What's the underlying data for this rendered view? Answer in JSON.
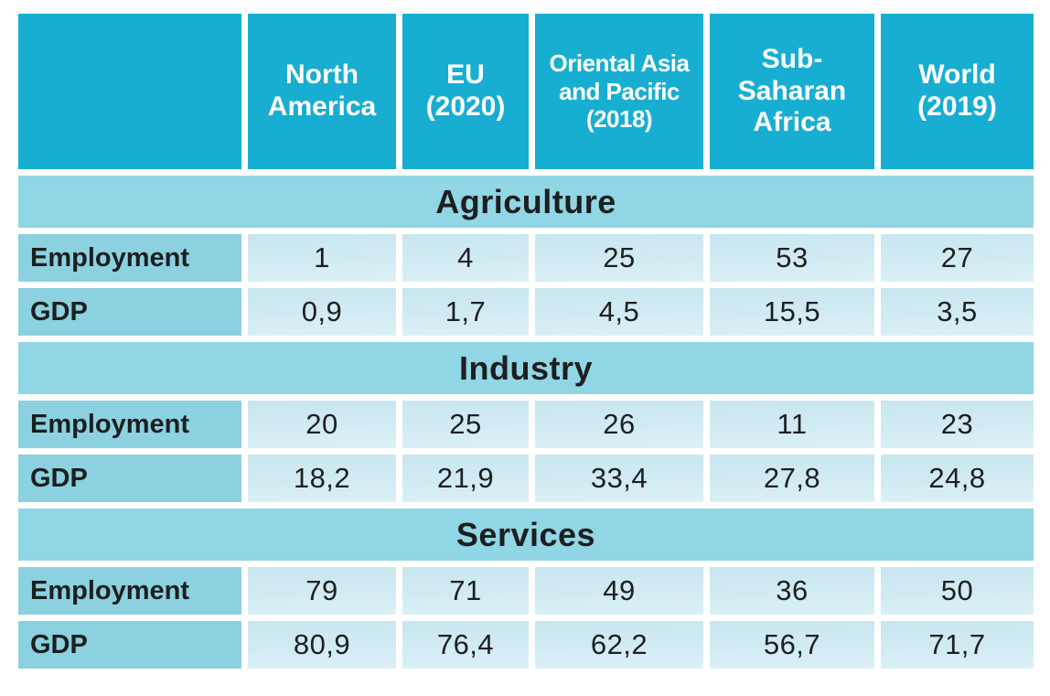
{
  "table": {
    "column_headers": [
      "",
      "North\nAmerica",
      "EU\n(2020)",
      "Oriental Asia\nand Pacific\n(2018)",
      "Sub-Saharan\nAfrica",
      "World\n(2019)"
    ],
    "sections": [
      {
        "title": "Agriculture",
        "rows": [
          {
            "label": "Employment",
            "values": [
              "1",
              "4",
              "25",
              "53",
              "27"
            ]
          },
          {
            "label": "GDP",
            "values": [
              "0,9",
              "1,7",
              "4,5",
              "15,5",
              "3,5"
            ]
          }
        ]
      },
      {
        "title": "Industry",
        "rows": [
          {
            "label": "Employment",
            "values": [
              "20",
              "25",
              "26",
              "11",
              "23"
            ]
          },
          {
            "label": "GDP",
            "values": [
              "18,2",
              "21,9",
              "33,4",
              "27,8",
              "24,8"
            ]
          }
        ]
      },
      {
        "title": "Services",
        "rows": [
          {
            "label": "Employment",
            "values": [
              "79",
              "71",
              "49",
              "36",
              "50"
            ]
          },
          {
            "label": "GDP",
            "values": [
              "80,9",
              "76,4",
              "62,2",
              "56,7",
              "71,7"
            ]
          }
        ]
      }
    ]
  },
  "chart_data": {
    "type": "table",
    "columns": [
      "North America",
      "EU (2020)",
      "Oriental Asia and Pacific (2018)",
      "Sub-Saharan Africa",
      "World (2019)"
    ],
    "sections": [
      {
        "title": "Agriculture",
        "series": [
          {
            "name": "Employment",
            "values": [
              1,
              4,
              25,
              53,
              27
            ]
          },
          {
            "name": "GDP",
            "values": [
              0.9,
              1.7,
              4.5,
              15.5,
              3.5
            ]
          }
        ]
      },
      {
        "title": "Industry",
        "series": [
          {
            "name": "Employment",
            "values": [
              20,
              25,
              26,
              11,
              23
            ]
          },
          {
            "name": "GDP",
            "values": [
              18.2,
              21.9,
              33.4,
              27.8,
              24.8
            ]
          }
        ]
      },
      {
        "title": "Services",
        "series": [
          {
            "name": "Employment",
            "values": [
              79,
              71,
              49,
              36,
              50
            ]
          },
          {
            "name": "GDP",
            "values": [
              80.9,
              76.4,
              62.2,
              56.7,
              71.7
            ]
          }
        ]
      }
    ],
    "value_format": "percent, comma decimal separator"
  },
  "colors": {
    "header_bg": "#17aed2",
    "header_text": "#ffffff",
    "section_band_bg": "#90d6e4",
    "row_label_bg": "#8bd1e0",
    "data_cell_bg": "#d2ebf3",
    "text_dark": "#1c1e1f",
    "gutter": "#ffffff"
  }
}
